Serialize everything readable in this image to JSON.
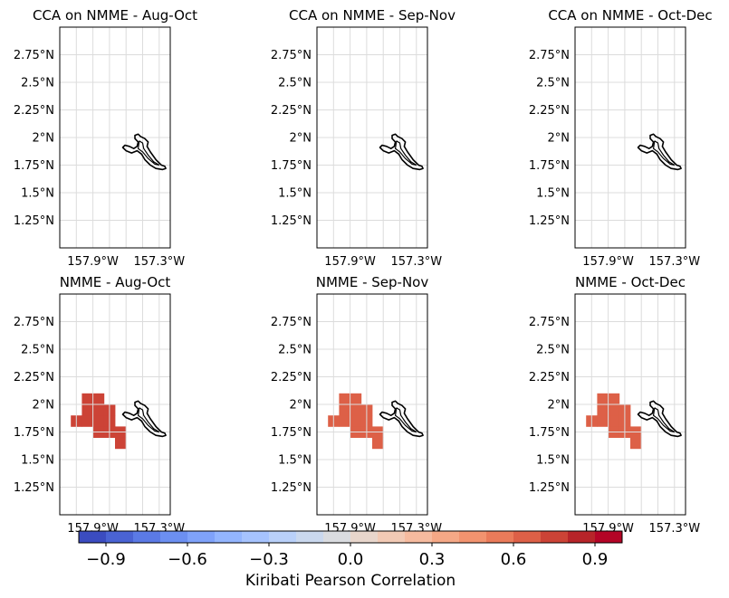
{
  "chart_data": {
    "type": "heatmap",
    "colormap": "coolwarm",
    "panels": [
      {
        "title": "CCA on NMME - Aug-Oct",
        "cells": []
      },
      {
        "title": "CCA on NMME - Sep-Nov",
        "cells": []
      },
      {
        "title": "CCA on NMME - Oct-Dec",
        "cells": []
      },
      {
        "title": "NMME - Aug-Oct",
        "cells": [
          {
            "lon": -157.95,
            "lat": 2.05,
            "value": 0.72
          },
          {
            "lon": -157.85,
            "lat": 2.05,
            "value": 0.72
          },
          {
            "lon": -157.95,
            "lat": 1.95,
            "value": 0.72
          },
          {
            "lon": -157.85,
            "lat": 1.95,
            "value": 0.72
          },
          {
            "lon": -157.75,
            "lat": 1.95,
            "value": 0.72
          },
          {
            "lon": -158.05,
            "lat": 1.85,
            "value": 0.72
          },
          {
            "lon": -157.95,
            "lat": 1.85,
            "value": 0.72
          },
          {
            "lon": -157.85,
            "lat": 1.85,
            "value": 0.72
          },
          {
            "lon": -157.75,
            "lat": 1.85,
            "value": 0.72
          },
          {
            "lon": -157.85,
            "lat": 1.75,
            "value": 0.72
          },
          {
            "lon": -157.75,
            "lat": 1.75,
            "value": 0.72
          },
          {
            "lon": -157.65,
            "lat": 1.75,
            "value": 0.72
          },
          {
            "lon": -157.65,
            "lat": 1.65,
            "value": 0.72
          }
        ]
      },
      {
        "title": "NMME - Sep-Nov",
        "cells": [
          {
            "lon": -157.95,
            "lat": 2.05,
            "value": 0.62
          },
          {
            "lon": -157.85,
            "lat": 2.05,
            "value": 0.62
          },
          {
            "lon": -157.95,
            "lat": 1.95,
            "value": 0.62
          },
          {
            "lon": -157.85,
            "lat": 1.95,
            "value": 0.62
          },
          {
            "lon": -157.75,
            "lat": 1.95,
            "value": 0.62
          },
          {
            "lon": -158.05,
            "lat": 1.85,
            "value": 0.62
          },
          {
            "lon": -157.95,
            "lat": 1.85,
            "value": 0.62
          },
          {
            "lon": -157.85,
            "lat": 1.85,
            "value": 0.62
          },
          {
            "lon": -157.75,
            "lat": 1.85,
            "value": 0.62
          },
          {
            "lon": -157.85,
            "lat": 1.75,
            "value": 0.62
          },
          {
            "lon": -157.75,
            "lat": 1.75,
            "value": 0.62
          },
          {
            "lon": -157.65,
            "lat": 1.75,
            "value": 0.62
          },
          {
            "lon": -157.65,
            "lat": 1.65,
            "value": 0.62
          }
        ]
      },
      {
        "title": "NMME - Oct-Dec",
        "cells": [
          {
            "lon": -157.95,
            "lat": 2.05,
            "value": 0.62
          },
          {
            "lon": -157.85,
            "lat": 2.05,
            "value": 0.62
          },
          {
            "lon": -157.95,
            "lat": 1.95,
            "value": 0.62
          },
          {
            "lon": -157.85,
            "lat": 1.95,
            "value": 0.62
          },
          {
            "lon": -157.75,
            "lat": 1.95,
            "value": 0.62
          },
          {
            "lon": -158.05,
            "lat": 1.85,
            "value": 0.62
          },
          {
            "lon": -157.95,
            "lat": 1.85,
            "value": 0.62
          },
          {
            "lon": -157.85,
            "lat": 1.85,
            "value": 0.62
          },
          {
            "lon": -157.75,
            "lat": 1.85,
            "value": 0.62
          },
          {
            "lon": -157.85,
            "lat": 1.75,
            "value": 0.62
          },
          {
            "lon": -157.75,
            "lat": 1.75,
            "value": 0.62
          },
          {
            "lon": -157.65,
            "lat": 1.75,
            "value": 0.62
          },
          {
            "lon": -157.65,
            "lat": 1.65,
            "value": 0.62
          }
        ]
      }
    ],
    "lon_range": [
      -158.2,
      -157.2
    ],
    "lat_range": [
      1.0,
      3.0
    ],
    "x_ticks": [
      -157.9,
      -157.3
    ],
    "x_tick_labels": [
      "157.9°W",
      "157.3°W"
    ],
    "y_ticks": [
      1.25,
      1.5,
      1.75,
      2.0,
      2.25,
      2.5,
      2.75
    ],
    "y_tick_labels": [
      "1.25°N",
      "1.5°N",
      "1.75°N",
      "2°N",
      "2.25°N",
      "2.5°N",
      "2.75°N"
    ],
    "grid": true,
    "colorbar": {
      "label": "Kiribati Pearson Correlation",
      "range": [
        -1.0,
        1.0
      ],
      "ticks": [
        -0.9,
        -0.6,
        -0.3,
        0.0,
        0.3,
        0.6,
        0.9
      ],
      "tick_labels": [
        "−0.9",
        "−0.6",
        "−0.3",
        "0.0",
        "0.3",
        "0.6",
        "0.9"
      ],
      "levels": 20,
      "colors": [
        "#3b4cc0",
        "#4a63d3",
        "#5b7ae5",
        "#6c8ff1",
        "#7fa2fa",
        "#93b5fe",
        "#a6c3fe",
        "#b9d0f9",
        "#cad8ee",
        "#dadce0",
        "#e8d6cc",
        "#f2cab5",
        "#f6bb9f",
        "#f5a886",
        "#f2936f",
        "#ea7b5a",
        "#dd6047",
        "#cc4336",
        "#b72429",
        "#b40426"
      ]
    },
    "coastline": "Kiritimati (Christmas Island) outline"
  }
}
